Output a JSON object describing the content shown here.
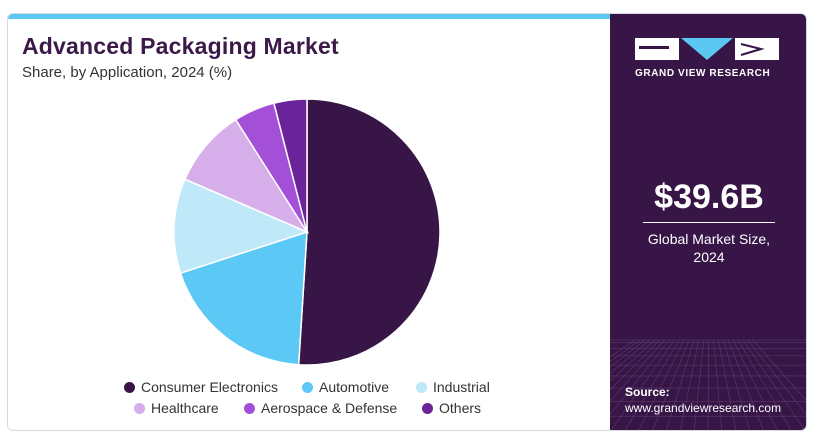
{
  "title": "Advanced Packaging Market",
  "subtitle": "Share, by Application, 2024 (%)",
  "brand": {
    "name": "GRAND VIEW RESEARCH",
    "panel_color": "#371546",
    "accent": "#5ac8f0"
  },
  "market": {
    "value": "$39.6B",
    "label_line1": "Global Market Size,",
    "label_line2": "2024"
  },
  "source": {
    "label": "Source:",
    "url": "www.grandviewresearch.com"
  },
  "chart_data": {
    "type": "pie",
    "title": "Advanced Packaging Market",
    "subtitle": "Share, by Application, 2024 (%)",
    "start": "12 o'clock, clockwise",
    "legend_position": "bottom",
    "slices": [
      {
        "name": "Consumer Electronics",
        "value": 51.0,
        "color": "#371546"
      },
      {
        "name": "Automotive",
        "value": 19.0,
        "color": "#5bc8f5"
      },
      {
        "name": "Industrial",
        "value": 11.5,
        "color": "#bfe8f8"
      },
      {
        "name": "Healthcare",
        "value": 9.5,
        "color": "#d5aeea"
      },
      {
        "name": "Aerospace & Defense",
        "value": 5.0,
        "color": "#a44fd8"
      },
      {
        "name": "Others",
        "value": 4.0,
        "color": "#6b2399"
      }
    ]
  }
}
